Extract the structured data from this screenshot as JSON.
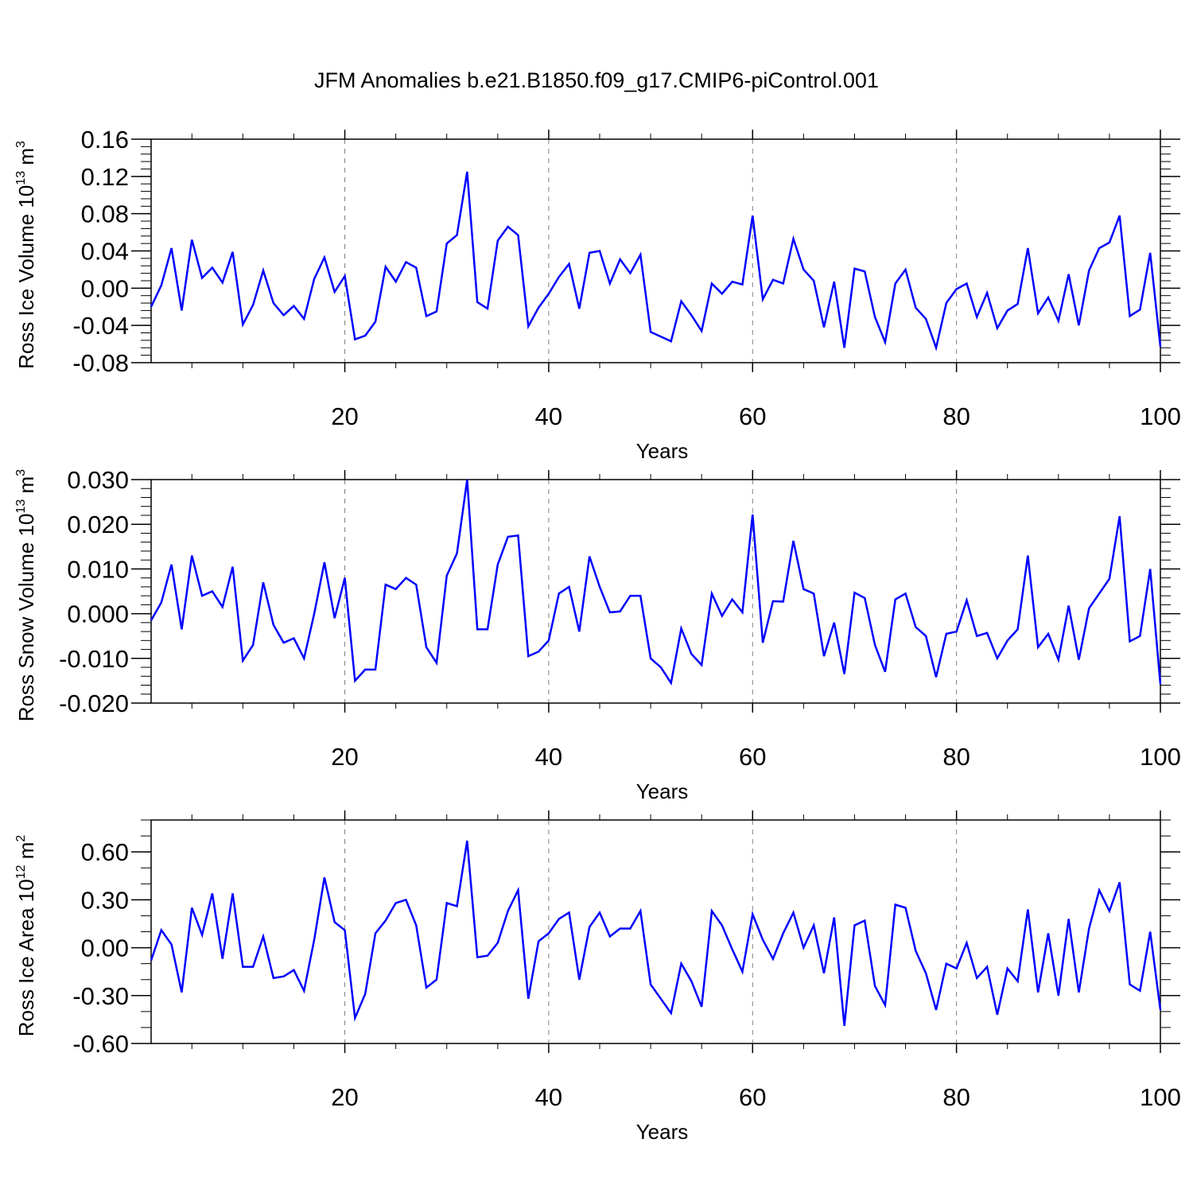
{
  "figure": {
    "title": "JFM Anomalies b.e21.B1850.f09_g17.CMIP6-piControl.001"
  },
  "style": {
    "line_color": "#0000ff",
    "grid_color": "#7f7f7f"
  },
  "chart_data": [
    {
      "type": "line",
      "title": "",
      "xlabel": "Years",
      "ylabel": {
        "main": "Ross Ice Volume 10",
        "exp": "13",
        "unit": "m",
        "unit_exp": "3"
      },
      "xlim": [
        1,
        100
      ],
      "ylim": [
        -0.08,
        0.16
      ],
      "x_ticks": [
        20,
        40,
        60,
        80,
        100
      ],
      "y_ticks": [
        -0.08,
        -0.04,
        0.0,
        0.04,
        0.08,
        0.12,
        0.16
      ],
      "y_tick_labels": [
        "-0.08",
        "-0.04",
        "0.00",
        "0.04",
        "0.08",
        "0.12",
        "0.16"
      ],
      "y_minor_step": 0.008,
      "grid": "dashed vertical at major x ticks",
      "series": [
        {
          "x_start": 1,
          "values": [
            -0.02,
            0.003,
            0.043,
            -0.024,
            0.052,
            0.011,
            0.022,
            0.006,
            0.039,
            -0.039,
            -0.018,
            0.019,
            -0.016,
            -0.029,
            -0.019,
            -0.033,
            0.01,
            0.033,
            -0.004,
            0.013,
            -0.055,
            -0.051,
            -0.036,
            0.023,
            0.007,
            0.028,
            0.022,
            -0.03,
            -0.025,
            0.048,
            0.057,
            0.125,
            -0.015,
            -0.022,
            0.051,
            0.066,
            0.057,
            -0.041,
            -0.021,
            -0.006,
            0.012,
            0.026,
            -0.022,
            0.038,
            0.04,
            0.005,
            0.031,
            0.016,
            0.036,
            -0.047,
            -0.052,
            -0.057,
            -0.014,
            -0.029,
            -0.046,
            0.005,
            -0.006,
            0.007,
            0.004,
            0.078,
            -0.012,
            0.009,
            0.005,
            0.053,
            0.02,
            0.008,
            -0.042,
            0.007,
            -0.064,
            0.021,
            0.018,
            -0.031,
            -0.058,
            0.005,
            0.02,
            -0.021,
            -0.033,
            -0.064,
            -0.016,
            -0.001,
            0.005,
            -0.031,
            -0.005,
            -0.043,
            -0.024,
            -0.017,
            0.043,
            -0.027,
            -0.01,
            -0.035,
            0.015,
            -0.04,
            0.019,
            0.043,
            0.049,
            0.078,
            -0.03,
            -0.023,
            0.038,
            -0.063
          ]
        }
      ]
    },
    {
      "type": "line",
      "title": "",
      "xlabel": "Years",
      "ylabel": {
        "main": "Ross Snow Volume 10",
        "exp": "13",
        "unit": "m",
        "unit_exp": "3"
      },
      "xlim": [
        1,
        100
      ],
      "ylim": [
        -0.02,
        0.03
      ],
      "x_ticks": [
        20,
        40,
        60,
        80,
        100
      ],
      "y_ticks": [
        -0.02,
        -0.01,
        0.0,
        0.01,
        0.02,
        0.03
      ],
      "y_tick_labels": [
        "-0.020",
        "-0.010",
        "0.000",
        "0.010",
        "0.020",
        "0.030"
      ],
      "y_minor_step": 0.002,
      "grid": "dashed vertical at major x ticks",
      "series": [
        {
          "x_start": 1,
          "values": [
            -0.0015,
            0.0025,
            0.011,
            -0.0035,
            0.013,
            0.004,
            0.005,
            0.0015,
            0.0105,
            -0.0105,
            -0.007,
            0.007,
            -0.0025,
            -0.0065,
            -0.0055,
            -0.01,
            0.0,
            0.0115,
            -0.001,
            0.008,
            -0.015,
            -0.0125,
            -0.0125,
            0.0065,
            0.0055,
            0.008,
            0.0065,
            -0.0075,
            -0.011,
            0.0085,
            0.0135,
            0.03,
            -0.0035,
            -0.0035,
            0.011,
            0.0172,
            0.0175,
            -0.0095,
            -0.0085,
            -0.006,
            0.0045,
            0.006,
            -0.004,
            0.0128,
            0.006,
            0.0003,
            0.0005,
            0.004,
            0.004,
            -0.01,
            -0.012,
            -0.0155,
            -0.0033,
            -0.009,
            -0.0115,
            0.0045,
            -0.0005,
            0.0032,
            0.0003,
            0.0222,
            -0.0065,
            0.0028,
            0.0027,
            0.0163,
            0.0055,
            0.0045,
            -0.0095,
            -0.002,
            -0.0135,
            0.0047,
            0.0035,
            -0.007,
            -0.013,
            0.0032,
            0.0045,
            -0.003,
            -0.005,
            -0.0142,
            -0.0045,
            -0.004,
            0.003,
            -0.005,
            -0.0043,
            -0.01,
            -0.006,
            -0.0035,
            0.013,
            -0.0075,
            -0.0045,
            -0.0103,
            0.0018,
            -0.0103,
            0.0012,
            0.0045,
            0.0078,
            0.0218,
            -0.0062,
            -0.005,
            0.01,
            -0.0158
          ]
        }
      ]
    },
    {
      "type": "line",
      "title": "",
      "xlabel": "Years",
      "ylabel": {
        "main": "Ross Ice Area 10",
        "exp": "12",
        "unit": "m",
        "unit_exp": "2"
      },
      "xlim": [
        1,
        100
      ],
      "ylim": [
        -0.6,
        0.8
      ],
      "x_ticks": [
        20,
        40,
        60,
        80,
        100
      ],
      "y_ticks": [
        -0.6,
        -0.3,
        0.0,
        0.3,
        0.6
      ],
      "y_tick_labels": [
        "-0.60",
        "-0.30",
        "0.00",
        "0.30",
        "0.60"
      ],
      "y_minor_step": 0.1,
      "grid": "dashed vertical at major x ticks",
      "series": [
        {
          "x_start": 1,
          "values": [
            -0.08,
            0.11,
            0.02,
            -0.28,
            0.25,
            0.08,
            0.34,
            -0.07,
            0.34,
            -0.12,
            -0.12,
            0.07,
            -0.19,
            -0.18,
            -0.14,
            -0.27,
            0.05,
            0.44,
            0.16,
            0.11,
            -0.44,
            -0.29,
            0.09,
            0.17,
            0.28,
            0.3,
            0.14,
            -0.25,
            -0.2,
            0.28,
            0.26,
            0.67,
            -0.06,
            -0.05,
            0.03,
            0.23,
            0.36,
            -0.32,
            0.04,
            0.09,
            0.18,
            0.22,
            -0.2,
            0.13,
            0.22,
            0.07,
            0.12,
            0.12,
            0.23,
            -0.23,
            -0.32,
            -0.41,
            -0.1,
            -0.21,
            -0.37,
            0.23,
            0.14,
            -0.01,
            -0.15,
            0.21,
            0.05,
            -0.07,
            0.09,
            0.22,
            0.0,
            0.14,
            -0.16,
            0.19,
            -0.49,
            0.14,
            0.17,
            -0.24,
            -0.36,
            0.27,
            0.25,
            -0.02,
            -0.16,
            -0.39,
            -0.1,
            -0.13,
            0.03,
            -0.19,
            -0.12,
            -0.42,
            -0.13,
            -0.21,
            0.24,
            -0.28,
            0.09,
            -0.3,
            0.18,
            -0.28,
            0.12,
            0.36,
            0.23,
            0.41,
            -0.23,
            -0.27,
            0.1,
            -0.39
          ]
        }
      ]
    }
  ]
}
